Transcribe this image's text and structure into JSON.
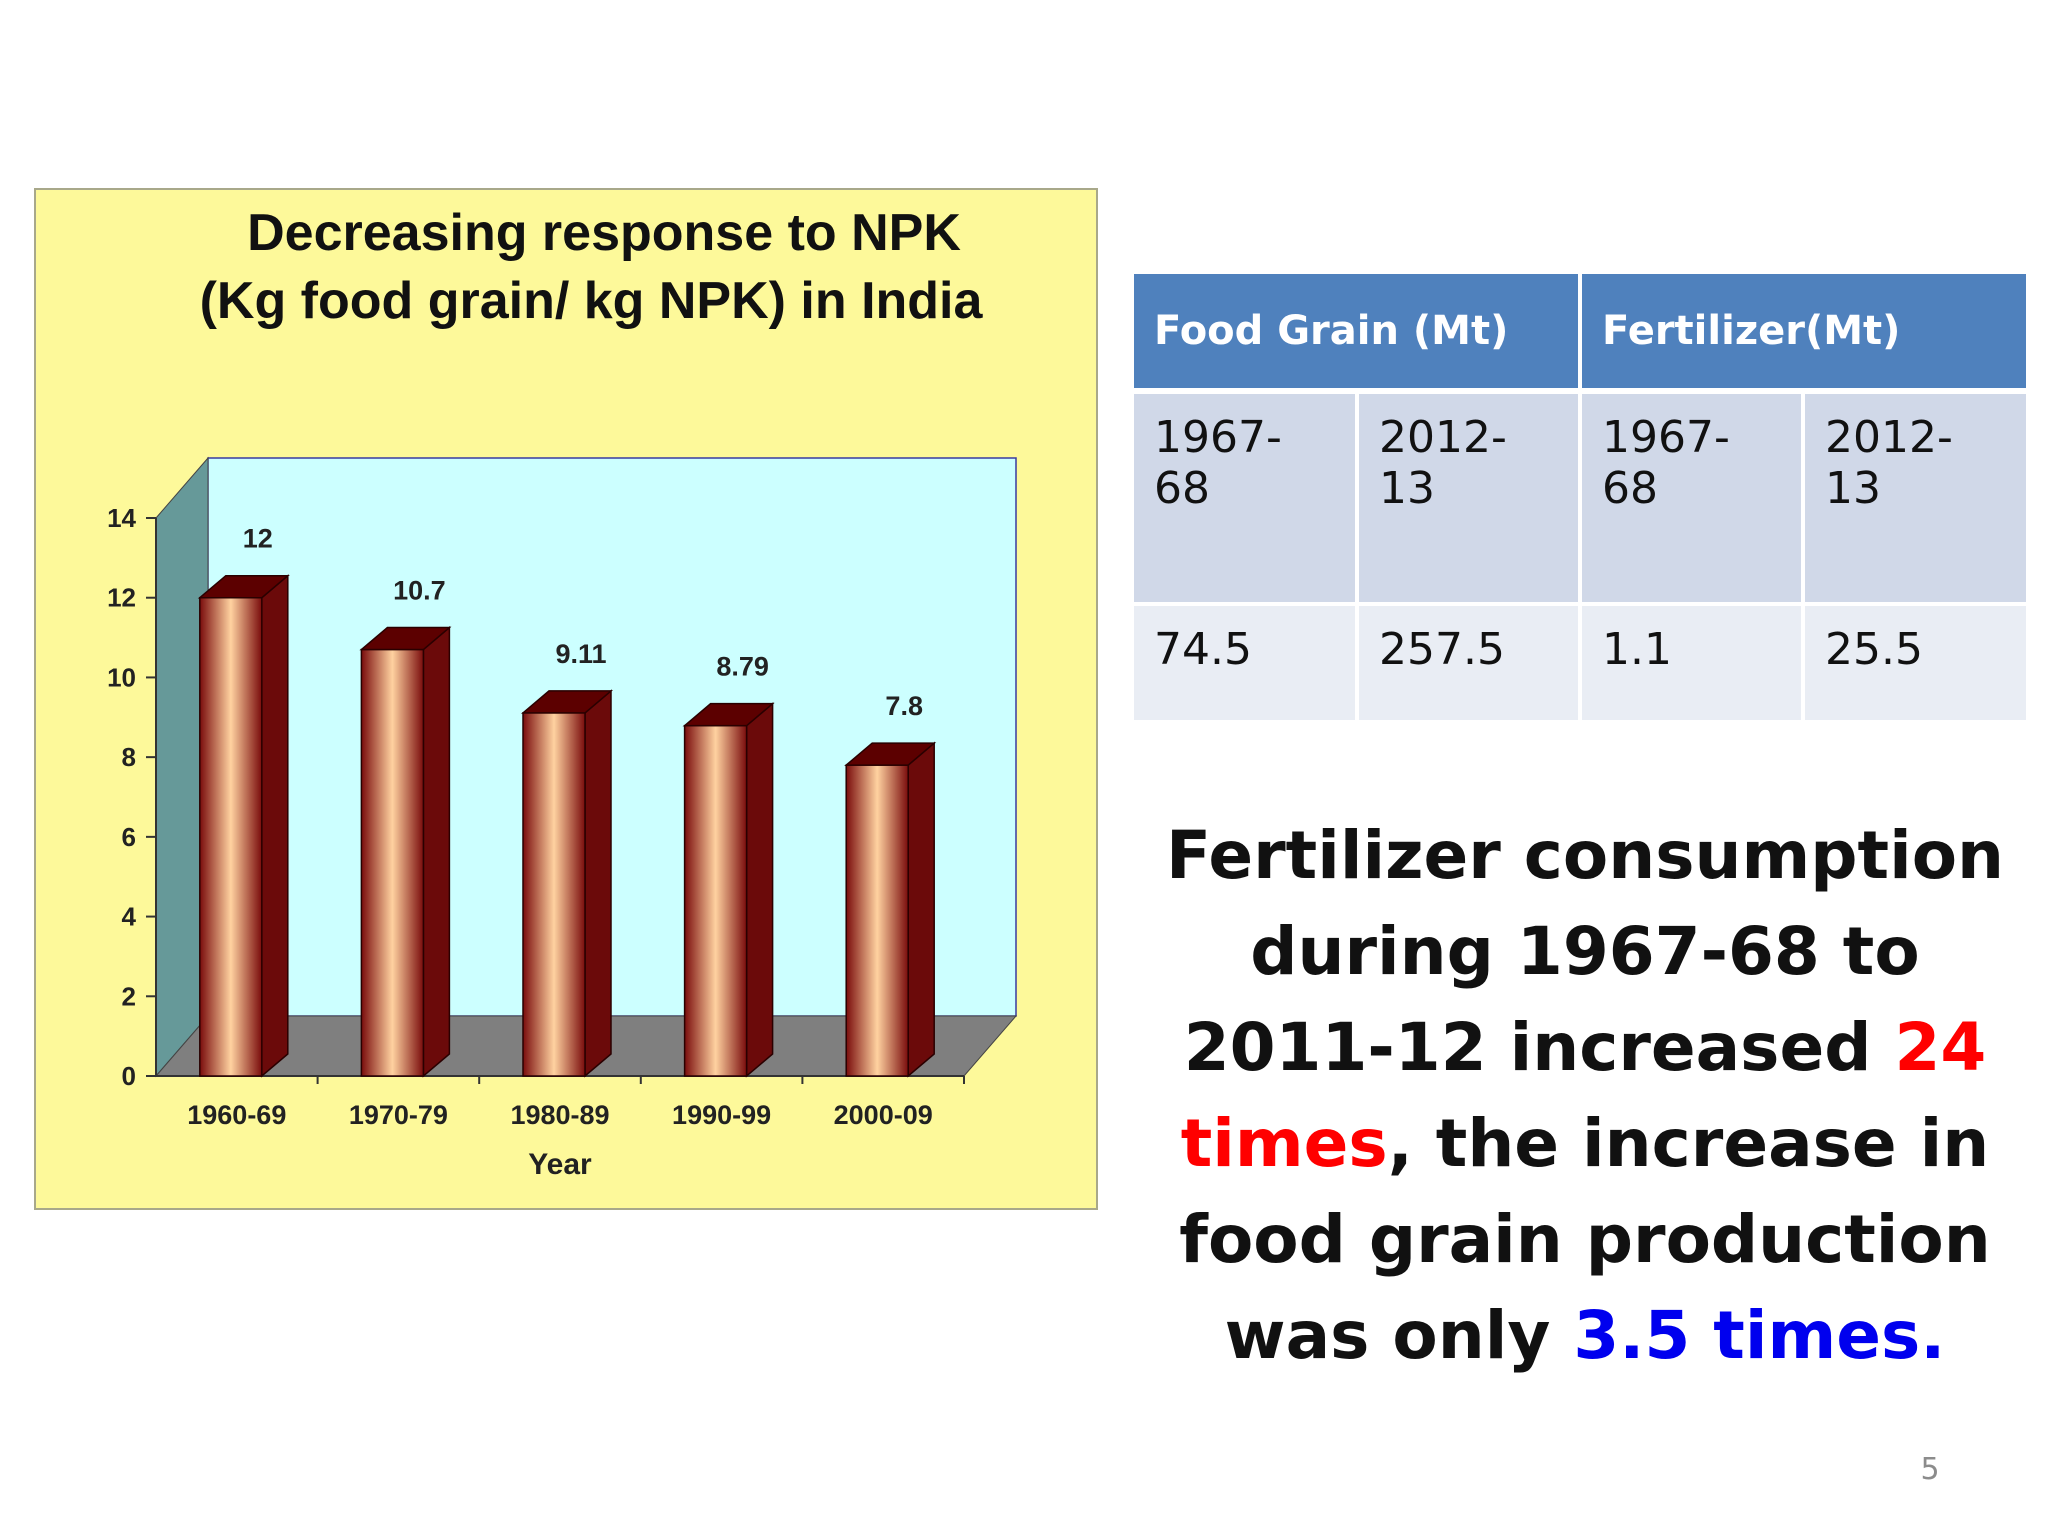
{
  "chart_data": {
    "type": "bar",
    "title": "Decreasing response to NPK",
    "subtitle": "(Kg food grain/ kg NPK) in India",
    "xlabel": "Year",
    "ylabel": "",
    "categories": [
      "1960-69",
      "1970-79",
      "1980-89",
      "1990-99",
      "2000-09"
    ],
    "values": [
      12,
      10.7,
      9.11,
      8.79,
      7.8
    ],
    "data_labels": [
      "12",
      "10.7",
      "9.11",
      "8.79",
      "7.8"
    ],
    "ylim": [
      0,
      14
    ],
    "yticks": [
      "0",
      "2",
      "4",
      "6",
      "8",
      "10",
      "12",
      "14"
    ],
    "grid": false,
    "legend": "none",
    "colors": {
      "background": "#fdf99a",
      "plot_wall": "#ccffff",
      "side_wall": "#669999",
      "floor": "#7f7f7f",
      "bar_dark": "#7a0c0c",
      "bar_light": "#ffd2a0"
    }
  },
  "table": {
    "headers": [
      "Food Grain (Mt)",
      "Fertilizer(Mt)"
    ],
    "rows": [
      [
        "1967-68",
        "2012-13",
        "1967-68",
        "2012-13"
      ],
      [
        "74.5",
        "257.5",
        "1.1",
        "25.5"
      ]
    ],
    "colors": {
      "header": "#4f81bd",
      "row1": "#d0d8e8",
      "row2": "#e9edf4"
    }
  },
  "summary": {
    "part1": "Fertilizer consumption during 1967-68 to 2011-12 increased ",
    "highlight1": "24 times",
    "part2": ", the increase in food grain production was only ",
    "highlight2": "3.5 times.",
    "colors": {
      "highlight1": "#ff0000",
      "highlight2": "#0000ee"
    }
  },
  "page_number": "5"
}
